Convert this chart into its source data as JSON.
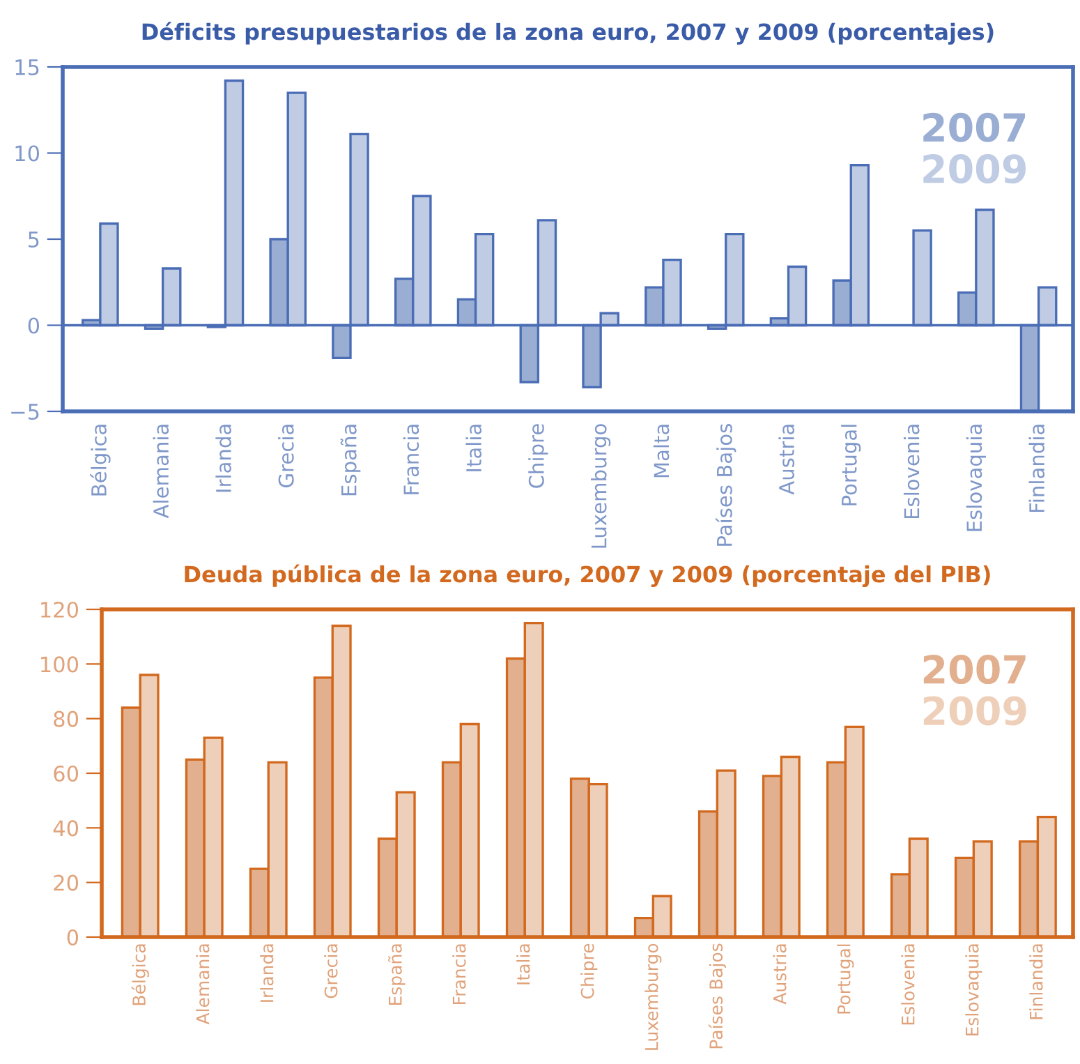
{
  "chart_data": [
    {
      "type": "bar",
      "title": "Déficits presupuestarios de la zona euro, 2007 y 2009 (porcentajes)",
      "categories": [
        "Bélgica",
        "Alemania",
        "Irlanda",
        "Grecia",
        "España",
        "Francia",
        "Italia",
        "Chipre",
        "Luxemburgo",
        "Malta",
        "Países Bajos",
        "Austria",
        "Portugal",
        "Eslovenia",
        "Eslovaquia",
        "Finlandia"
      ],
      "series": [
        {
          "name": "2007",
          "color": "#9aaed3",
          "values": [
            0.3,
            -0.2,
            -0.1,
            5.0,
            -1.9,
            2.7,
            1.5,
            -3.3,
            -3.6,
            2.2,
            -0.2,
            0.4,
            2.6,
            null,
            1.9,
            -5.0
          ]
        },
        {
          "name": "2009",
          "color": "#c0cce4",
          "values": [
            5.9,
            3.3,
            14.2,
            13.5,
            11.1,
            7.5,
            5.3,
            6.1,
            0.7,
            3.8,
            5.3,
            3.4,
            9.3,
            5.5,
            6.7,
            2.2
          ]
        }
      ],
      "ylim": [
        -5,
        15
      ],
      "yticks": [
        {
          "value": -5,
          "label": "−5"
        },
        0,
        5,
        10,
        15
      ],
      "grid": false,
      "legend": "top right",
      "ref_lines": [
        {
          "axis": "y",
          "value": 0
        }
      ]
    },
    {
      "type": "bar",
      "title": "Deuda pública de la zona euro, 2007 y 2009 (porcentaje del PIB)",
      "categories": [
        "Bélgica",
        "Alemania",
        "Irlanda",
        "Grecia",
        "España",
        "Francia",
        "Italia",
        "Chipre",
        "Luxemburgo",
        "Países Bajos",
        "Austria",
        "Portugal",
        "Eslovenia",
        "Eslovaquia",
        "Finlandia"
      ],
      "series": [
        {
          "name": "2007",
          "color": "#e2b08e",
          "values": [
            84,
            65,
            25,
            95,
            36,
            64,
            102,
            58,
            7,
            46,
            59,
            64,
            23,
            29,
            35
          ]
        },
        {
          "name": "2009",
          "color": "#eecfb9",
          "values": [
            96,
            73,
            64,
            114,
            53,
            78,
            115,
            56,
            15,
            61,
            66,
            77,
            36,
            35,
            44
          ]
        }
      ],
      "ylim": [
        0,
        120
      ],
      "yticks": [
        0,
        20,
        40,
        60,
        80,
        100,
        120
      ],
      "grid": false,
      "legend": "top right"
    }
  ]
}
